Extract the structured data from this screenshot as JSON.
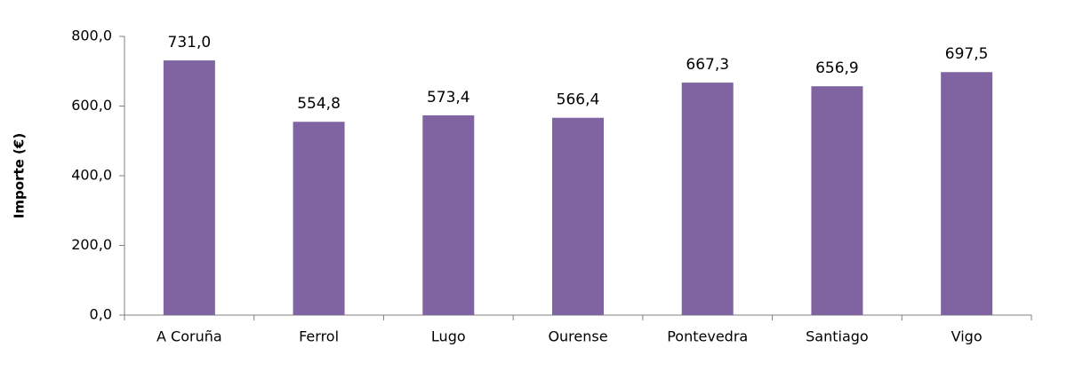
{
  "chart_data": {
    "type": "bar",
    "y_label": "Importe (€)",
    "categories": [
      "A Coruña",
      "Ferrol",
      "Lugo",
      "Ourense",
      "Pontevedra",
      "Santiago",
      "Vigo"
    ],
    "values": [
      731.0,
      554.8,
      573.4,
      566.4,
      667.3,
      656.9,
      697.5
    ],
    "value_labels": [
      "731,0",
      "554,8",
      "573,4",
      "566,4",
      "667,3",
      "656,9",
      "697,5"
    ],
    "color": "#8064a2",
    "ylim": [
      0,
      800
    ],
    "yticks": [
      {
        "value": 0,
        "label": "0,0"
      },
      {
        "value": 200,
        "label": "200,0"
      },
      {
        "value": 400,
        "label": "400,0"
      },
      {
        "value": 600,
        "label": "600,0"
      },
      {
        "value": 800,
        "label": "800,0"
      }
    ],
    "grid": false
  }
}
